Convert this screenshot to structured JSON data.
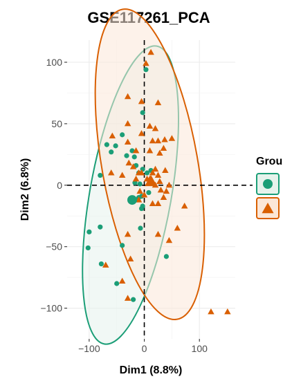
{
  "chart_data": {
    "type": "scatter",
    "title": "GSE117261_PCA",
    "xlabel": "Dim1 (8.8%)",
    "ylabel": "Dim2 (6.8%)",
    "xlim": [
      -140,
      165
    ],
    "ylim": [
      -125,
      118
    ],
    "xticks": [
      -100,
      0,
      100
    ],
    "xtick_labels": [
      "−100",
      "0",
      "100"
    ],
    "yticks": [
      -100,
      -50,
      0,
      50,
      100
    ],
    "ytick_labels": [
      "−100",
      "−50",
      "0",
      "50",
      "100"
    ],
    "grid": true,
    "reference_lines": {
      "x": 0,
      "y": 0,
      "style": "dashed"
    },
    "legend": {
      "title": "Grou",
      "placement": "right",
      "entries": [
        "",
        ""
      ]
    },
    "series": [
      {
        "marker": "circle",
        "color": "#1b9e77",
        "fill": "#e6f2ec",
        "ellipse": {
          "cx": -25,
          "cy": -8,
          "rx": 74,
          "ry": 123,
          "angle": 10
        },
        "centroid": [
          -22,
          -12
        ],
        "points": [
          [
            -3,
            59
          ],
          [
            -40,
            41
          ],
          [
            -68,
            33
          ],
          [
            -60,
            27
          ],
          [
            -52,
            32
          ],
          [
            -22,
            28
          ],
          [
            -32,
            24
          ],
          [
            -18,
            23
          ],
          [
            -15,
            16
          ],
          [
            -10,
            10
          ],
          [
            -3,
            13
          ],
          [
            5,
            10
          ],
          [
            12,
            12
          ],
          [
            -17,
            2
          ],
          [
            -8,
            1
          ],
          [
            -5,
            -9
          ],
          [
            -10,
            -10
          ],
          [
            -3,
            -17
          ],
          [
            -5,
            -19
          ],
          [
            8,
            -6
          ],
          [
            -12,
            -12
          ],
          [
            -7,
            -35
          ],
          [
            -100,
            -38
          ],
          [
            -80,
            -34
          ],
          [
            -102,
            -51
          ],
          [
            -40,
            -49
          ],
          [
            -78,
            -64
          ],
          [
            -50,
            -80
          ],
          [
            -20,
            -93
          ],
          [
            40,
            -58
          ],
          [
            3,
            94
          ],
          [
            -80,
            8
          ]
        ]
      },
      {
        "marker": "triangle",
        "color": "#d95f02",
        "fill": "#fbe7d8",
        "ellipse": {
          "cx": 10,
          "cy": 17,
          "rx": 87,
          "ry": 128,
          "angle": -10
        },
        "centroid": [
          12,
          3
        ],
        "points": [
          [
            12,
            108
          ],
          [
            3,
            99
          ],
          [
            -30,
            72
          ],
          [
            -5,
            68
          ],
          [
            25,
            67
          ],
          [
            -30,
            50
          ],
          [
            10,
            48
          ],
          [
            20,
            46
          ],
          [
            -5,
            42
          ],
          [
            15,
            36
          ],
          [
            25,
            36
          ],
          [
            37,
            37
          ],
          [
            50,
            38
          ],
          [
            -58,
            40
          ],
          [
            -30,
            35
          ],
          [
            35,
            30
          ],
          [
            -15,
            28
          ],
          [
            10,
            28
          ],
          [
            28,
            26
          ],
          [
            -28,
            18
          ],
          [
            -20,
            15
          ],
          [
            20,
            13
          ],
          [
            38,
            12
          ],
          [
            -5,
            10
          ],
          [
            -10,
            10
          ],
          [
            15,
            10
          ],
          [
            25,
            8
          ],
          [
            5,
            5
          ],
          [
            10,
            5
          ],
          [
            -15,
            5
          ],
          [
            20,
            0
          ],
          [
            28,
            3
          ],
          [
            45,
            0
          ],
          [
            40,
            -5
          ],
          [
            30,
            -4
          ],
          [
            35,
            -10
          ],
          [
            -8,
            -5
          ],
          [
            0,
            -8
          ],
          [
            -10,
            -12
          ],
          [
            15,
            -15
          ],
          [
            25,
            -15
          ],
          [
            -70,
            -65
          ],
          [
            73,
            -17
          ],
          [
            60,
            -35
          ],
          [
            45,
            -45
          ],
          [
            25,
            -40
          ],
          [
            -30,
            -40
          ],
          [
            -25,
            -60
          ],
          [
            -40,
            -78
          ],
          [
            -30,
            -92
          ],
          [
            121,
            -103
          ],
          [
            151,
            -103
          ],
          [
            -40,
            8
          ],
          [
            -60,
            10
          ]
        ]
      }
    ]
  }
}
